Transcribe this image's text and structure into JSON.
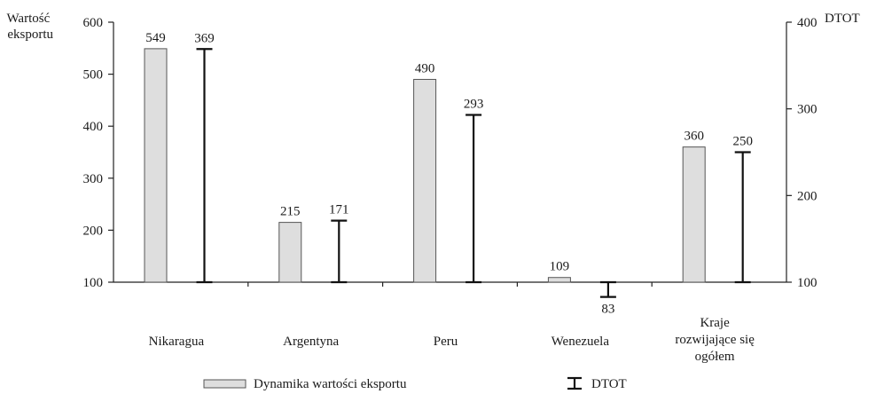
{
  "chart_data": {
    "type": "bar",
    "categories": [
      "Nikaragua",
      "Argentyna",
      "Peru",
      "Wenezuela",
      "Kraje rozwijające się ogółem"
    ],
    "category_label_lines": [
      [
        "Nikaragua"
      ],
      [
        "Argentyna"
      ],
      [
        "Peru"
      ],
      [
        "Wenezuela"
      ],
      [
        "Kraje",
        "rozwijające się",
        "ogółem"
      ]
    ],
    "series": [
      {
        "name": "Dynamika wartości eksportu",
        "axis": "left",
        "mark": "bar",
        "values": [
          549,
          215,
          490,
          109,
          360
        ]
      },
      {
        "name": "DTOT",
        "axis": "right",
        "mark": "error-bar-from-100",
        "values": [
          369,
          171,
          293,
          83,
          250
        ]
      }
    ],
    "left_axis": {
      "label_lines": [
        "Wartość",
        "eksportu"
      ],
      "ylim": [
        100,
        600
      ],
      "ticks": [
        100,
        200,
        300,
        400,
        500,
        600
      ]
    },
    "right_axis": {
      "label": "DTOT",
      "ylim": [
        100,
        400
      ],
      "ticks": [
        100,
        200,
        300,
        400
      ]
    },
    "legend_position": "bottom",
    "grid": false,
    "colors": {
      "bar_fill": "#dedede",
      "bar_stroke": "#555555",
      "dtot": "#111111",
      "text": "#1a1a1a"
    }
  }
}
